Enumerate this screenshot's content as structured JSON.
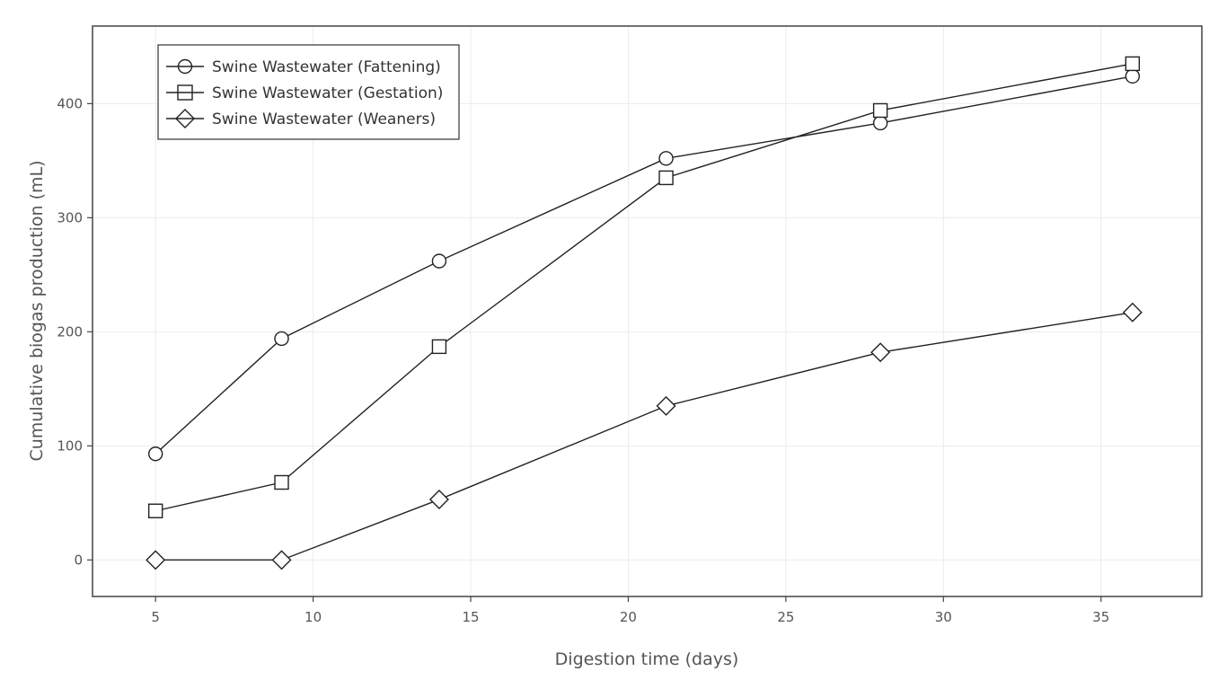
{
  "chart_data": {
    "type": "line",
    "title": "",
    "xlabel": "Digestion time (days)",
    "ylabel": "Cumulative biogas production (mL)",
    "xlim": [
      3,
      38.2
    ],
    "ylim": [
      -32,
      468
    ],
    "xticks": [
      5,
      10,
      15,
      20,
      25,
      30,
      35
    ],
    "yticks": [
      0,
      100,
      200,
      300,
      400
    ],
    "grid": true,
    "legend_position": "top-left",
    "series": [
      {
        "name": "Swine Wastewater (Fattening)",
        "marker": "circle",
        "x": [
          5,
          9,
          14,
          21.2,
          28,
          36
        ],
        "y": [
          93,
          194,
          262,
          352,
          383,
          424
        ]
      },
      {
        "name": "Swine Wastewater (Gestation)",
        "marker": "square",
        "x": [
          5,
          9,
          14,
          21.2,
          28,
          36
        ],
        "y": [
          43,
          68,
          187,
          335,
          394,
          435
        ]
      },
      {
        "name": "Swine Wastewater (Weaners)",
        "marker": "diamond",
        "x": [
          5,
          9,
          14,
          21.2,
          28,
          36
        ],
        "y": [
          0,
          0,
          53,
          135,
          182,
          217
        ]
      }
    ],
    "colors": {
      "line": "#222222",
      "grid": "#ebebeb",
      "frame": "#444444",
      "text": "#555555"
    }
  }
}
